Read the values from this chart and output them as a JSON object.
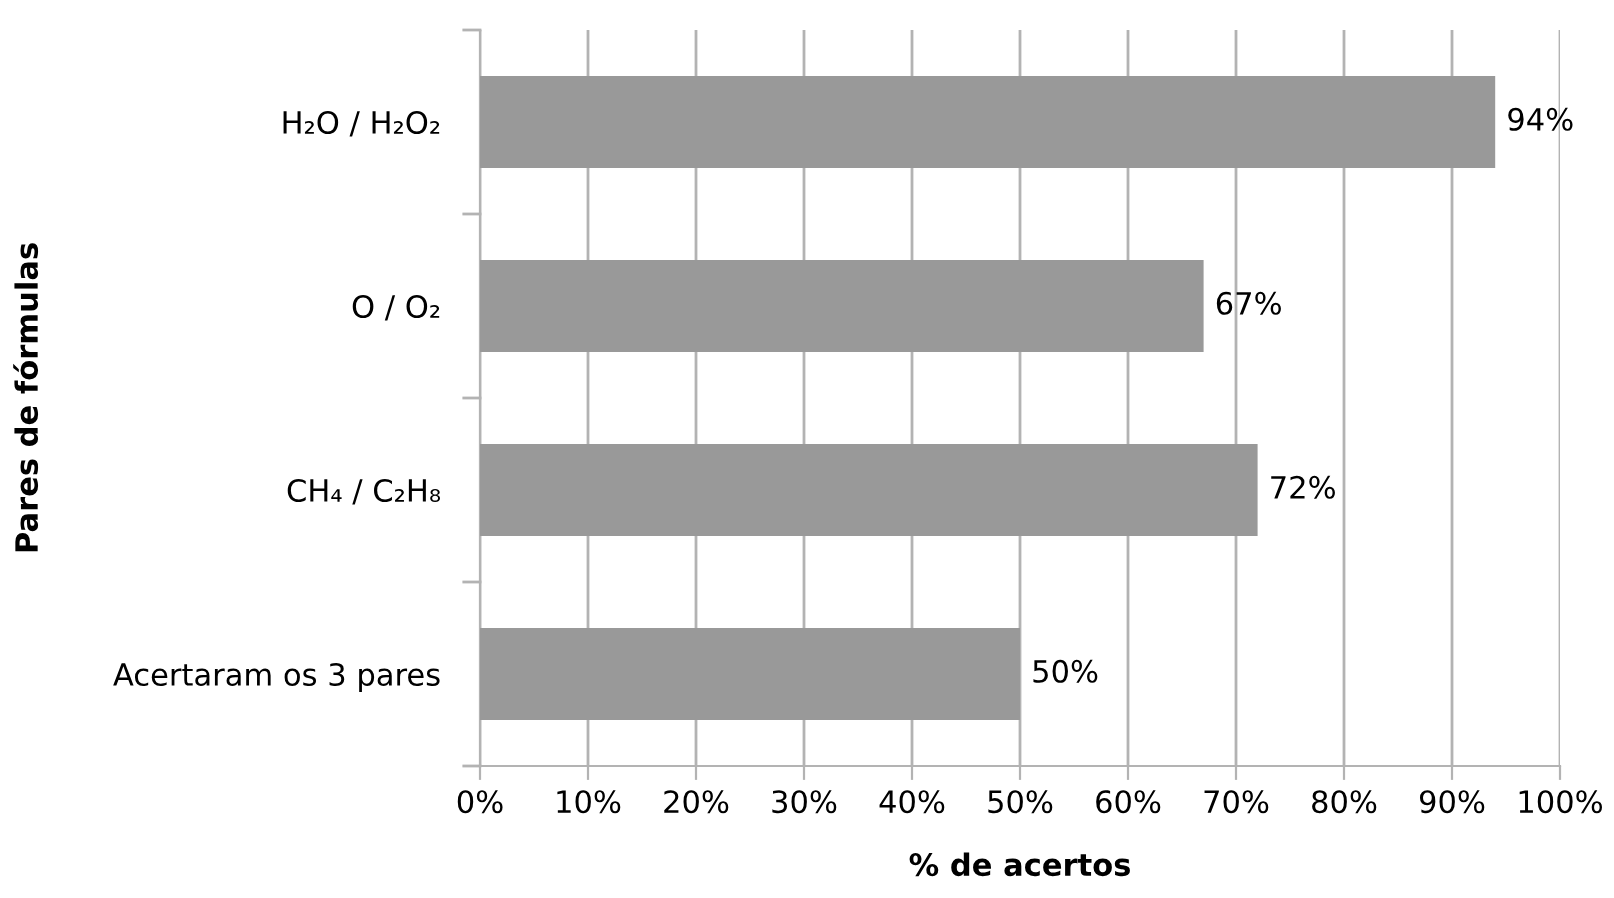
{
  "chart_data": {
    "type": "bar",
    "orientation": "horizontal",
    "xlabel": "% de acertos",
    "ylabel": "Pares de fórmulas",
    "categories": [
      "H₂O / H₂O₂",
      "O / O₂",
      "CH₄ / C₂H₈",
      "Acertaram os 3 pares"
    ],
    "values": [
      94,
      67,
      72,
      50
    ],
    "color": "#999999",
    "value_labels": [
      "94%",
      "67%",
      "72%",
      "50%"
    ],
    "xlim": [
      0,
      100
    ],
    "xticks": [
      {
        "value": 0,
        "label": "0%"
      },
      {
        "value": 10,
        "label": "10%"
      },
      {
        "value": 20,
        "label": "20%"
      },
      {
        "value": 30,
        "label": "30%"
      },
      {
        "value": 40,
        "label": "40%"
      },
      {
        "value": 50,
        "label": "50%"
      },
      {
        "value": 60,
        "label": "60%"
      },
      {
        "value": 70,
        "label": "70%"
      },
      {
        "value": 80,
        "label": "80%"
      },
      {
        "value": 90,
        "label": "90%"
      },
      {
        "value": 100,
        "label": "100%"
      }
    ],
    "grid": "x",
    "legend": false
  }
}
